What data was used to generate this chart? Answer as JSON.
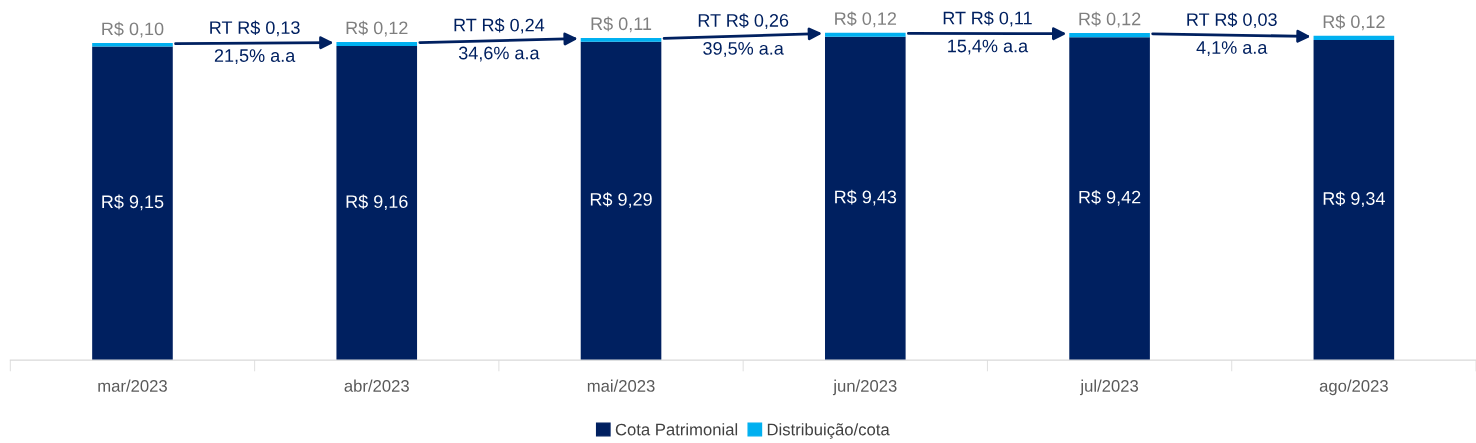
{
  "chart_data": {
    "type": "bar",
    "stacked": true,
    "categories": [
      "mar/2023",
      "abr/2023",
      "mai/2023",
      "jun/2023",
      "jul/2023",
      "ago/2023"
    ],
    "series": [
      {
        "name": "Cota Patrimonial",
        "color": "#002060",
        "values": [
          9.15,
          9.16,
          9.29,
          9.43,
          9.42,
          9.34
        ],
        "value_labels": [
          "R$ 9,15",
          "R$ 9,16",
          "R$ 9,29",
          "R$ 9,43",
          "R$ 9,42",
          "R$ 9,34"
        ]
      },
      {
        "name": "Distribuição/cota",
        "color": "#00b0f0",
        "values": [
          0.1,
          0.12,
          0.11,
          0.12,
          0.12,
          0.12
        ],
        "value_labels": [
          "R$ 0,10",
          "R$ 0,12",
          "R$ 0,11",
          "R$ 0,12",
          "R$ 0,12",
          "R$ 0,12"
        ]
      }
    ],
    "tick_labels": "x",
    "legend": "bottom",
    "grid": false,
    "annotations": [
      "RT R$ 0,13",
      "21,5% a.a",
      "RT R$ 0,24",
      "34,6% a.a",
      "RT R$ 0,26",
      "39,5% a.a",
      "RT R$ 0,11",
      "15,4% a.a",
      "RT R$ 0,03",
      "4,1% a.a"
    ]
  }
}
